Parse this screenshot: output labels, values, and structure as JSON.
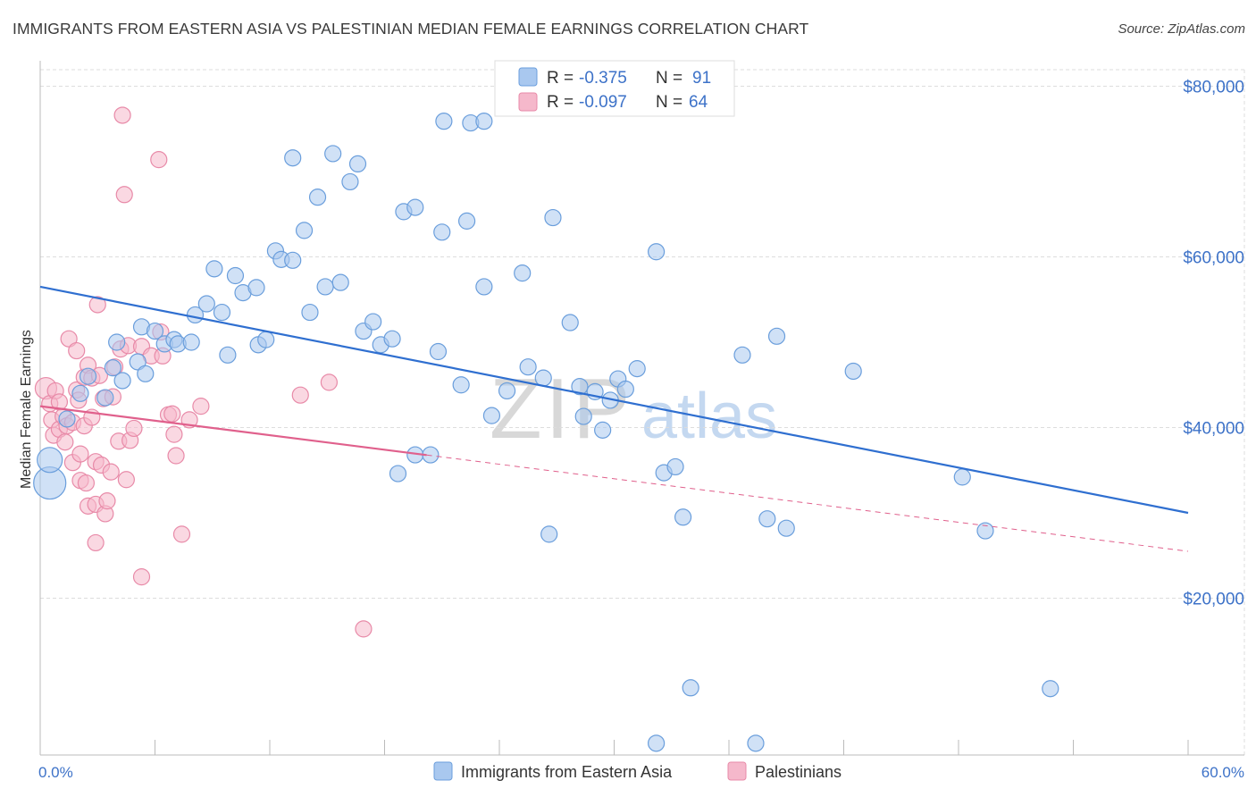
{
  "title": "IMMIGRANTS FROM EASTERN ASIA VS PALESTINIAN MEDIAN FEMALE EARNINGS CORRELATION CHART",
  "source": "Source: ZipAtlas.com",
  "watermark": {
    "zip": "ZIP",
    "atlas": "atlas"
  },
  "legend_stats": [
    {
      "r_label": "R =",
      "r_value": "-0.375",
      "n_label": "N =",
      "n_value": "91"
    },
    {
      "r_label": "R =",
      "r_value": "-0.097",
      "n_label": "N =",
      "n_value": "64"
    }
  ],
  "colors": {
    "blue_fill": "#a9c8ef",
    "blue_stroke": "#6a9edc",
    "blue_line": "#2f6fd0",
    "pink_fill": "#f5b8cb",
    "pink_stroke": "#e88aa8",
    "pink_line": "#e0608c",
    "axis_text": "#3d72c8",
    "grid": "#dddddd"
  },
  "chart_data": {
    "type": "scatter",
    "title": "IMMIGRANTS FROM EASTERN ASIA VS PALESTINIAN MEDIAN FEMALE EARNINGS CORRELATION CHART",
    "xlabel": "",
    "ylabel": "Median Female Earnings",
    "xlim": [
      0,
      60
    ],
    "ylim": [
      0,
      82000
    ],
    "x_tick_labels": [
      "0.0%",
      "60.0%"
    ],
    "y_ticks": [
      20000,
      40000,
      60000,
      80000
    ],
    "y_tick_labels": [
      "$20,000",
      "$40,000",
      "$60,000",
      "$80,000"
    ],
    "grid": true,
    "legend_position": "bottom",
    "series": [
      {
        "name": "Immigrants from Eastern Asia",
        "color": "#a9c8ef",
        "trend": {
          "x": [
            0,
            60
          ],
          "y": [
            56500,
            30000
          ],
          "dashed_from": null
        },
        "points": [
          [
            0.5,
            33500,
            18
          ],
          [
            0.5,
            36200,
            14
          ],
          [
            1.4,
            41000,
            9
          ],
          [
            2.1,
            44000,
            9
          ],
          [
            2.5,
            46000,
            9
          ],
          [
            3.4,
            43500,
            9
          ],
          [
            3.8,
            47000,
            9
          ],
          [
            4.0,
            50000,
            9
          ],
          [
            4.3,
            45500,
            9
          ],
          [
            5.1,
            47700,
            9
          ],
          [
            5.3,
            51800,
            9
          ],
          [
            5.5,
            46300,
            9
          ],
          [
            6.0,
            51300,
            9
          ],
          [
            6.5,
            49800,
            9
          ],
          [
            7.0,
            50300,
            9
          ],
          [
            7.2,
            49800,
            9
          ],
          [
            7.9,
            50000,
            9
          ],
          [
            8.1,
            53200,
            9
          ],
          [
            8.7,
            54500,
            9
          ],
          [
            9.1,
            58600,
            9
          ],
          [
            9.5,
            53500,
            9
          ],
          [
            9.8,
            48500,
            9
          ],
          [
            10.2,
            57800,
            9
          ],
          [
            10.6,
            55800,
            9
          ],
          [
            11.3,
            56400,
            9
          ],
          [
            11.4,
            49700,
            9
          ],
          [
            11.8,
            50300,
            9
          ],
          [
            12.3,
            60700,
            9
          ],
          [
            12.6,
            59700,
            9
          ],
          [
            13.2,
            59600,
            9
          ],
          [
            13.2,
            71600,
            9
          ],
          [
            13.8,
            63100,
            9
          ],
          [
            14.1,
            53500,
            9
          ],
          [
            14.5,
            67000,
            9
          ],
          [
            14.9,
            56500,
            9
          ],
          [
            15.3,
            72100,
            9
          ],
          [
            15.7,
            57000,
            9
          ],
          [
            16.2,
            68800,
            9
          ],
          [
            16.6,
            70900,
            9
          ],
          [
            16.9,
            51300,
            9
          ],
          [
            17.4,
            52400,
            9
          ],
          [
            17.8,
            49700,
            9
          ],
          [
            18.4,
            50400,
            9
          ],
          [
            18.7,
            34600,
            9
          ],
          [
            19.0,
            65300,
            9
          ],
          [
            19.6,
            65800,
            9
          ],
          [
            19.6,
            36800,
            9
          ],
          [
            20.4,
            36800,
            9
          ],
          [
            20.8,
            48900,
            9
          ],
          [
            21.0,
            62900,
            9
          ],
          [
            21.1,
            75900,
            9
          ],
          [
            22.0,
            45000,
            9
          ],
          [
            22.3,
            64200,
            9
          ],
          [
            22.5,
            75700,
            9
          ],
          [
            23.2,
            75900,
            9
          ],
          [
            23.2,
            56500,
            9
          ],
          [
            23.6,
            41400,
            9
          ],
          [
            24.4,
            44300,
            9
          ],
          [
            25.2,
            58100,
            9
          ],
          [
            25.5,
            47100,
            9
          ],
          [
            26.3,
            45800,
            9
          ],
          [
            26.6,
            27500,
            9
          ],
          [
            26.8,
            64600,
            9
          ],
          [
            27.7,
            52300,
            9
          ],
          [
            28.2,
            44800,
            9
          ],
          [
            28.4,
            41300,
            9
          ],
          [
            29.0,
            44200,
            9
          ],
          [
            29.4,
            39700,
            9
          ],
          [
            29.8,
            43200,
            9
          ],
          [
            30.2,
            45700,
            9
          ],
          [
            30.6,
            44500,
            9
          ],
          [
            31.2,
            46900,
            9
          ],
          [
            32.2,
            3000,
            9
          ],
          [
            32.2,
            60600,
            9
          ],
          [
            32.6,
            34700,
            9
          ],
          [
            33.2,
            35400,
            9
          ],
          [
            33.6,
            29500,
            9
          ],
          [
            34.0,
            9500,
            9
          ],
          [
            36.7,
            48500,
            9
          ],
          [
            37.4,
            3000,
            9
          ],
          [
            38.0,
            29300,
            9
          ],
          [
            38.5,
            50700,
            9
          ],
          [
            39.0,
            28200,
            9
          ],
          [
            42.5,
            46600,
            9
          ],
          [
            48.2,
            34200,
            9
          ],
          [
            49.4,
            27900,
            9
          ],
          [
            52.8,
            9400,
            9
          ]
        ]
      },
      {
        "name": "Palestinians",
        "color": "#f5b8cb",
        "trend": {
          "x": [
            0,
            60
          ],
          "y": [
            42500,
            25500
          ],
          "dashed_from": 20.2
        },
        "points": [
          [
            0.3,
            44600,
            12
          ],
          [
            0.5,
            42800,
            9
          ],
          [
            0.6,
            40900,
            9
          ],
          [
            0.7,
            39100,
            9
          ],
          [
            0.8,
            44300,
            9
          ],
          [
            1.0,
            43000,
            9
          ],
          [
            1.0,
            39800,
            9
          ],
          [
            1.2,
            41300,
            9
          ],
          [
            1.3,
            38300,
            9
          ],
          [
            1.4,
            40200,
            9
          ],
          [
            1.5,
            50400,
            9
          ],
          [
            1.7,
            35900,
            9
          ],
          [
            1.7,
            40600,
            9
          ],
          [
            1.9,
            44400,
            9
          ],
          [
            1.9,
            49000,
            9
          ],
          [
            2.0,
            43200,
            9
          ],
          [
            2.1,
            36900,
            9
          ],
          [
            2.1,
            33800,
            9
          ],
          [
            2.3,
            45900,
            9
          ],
          [
            2.3,
            40200,
            9
          ],
          [
            2.4,
            33500,
            9
          ],
          [
            2.5,
            30800,
            9
          ],
          [
            2.5,
            47300,
            9
          ],
          [
            2.7,
            41200,
            9
          ],
          [
            2.7,
            45800,
            9
          ],
          [
            2.9,
            36000,
            9
          ],
          [
            2.9,
            31000,
            9
          ],
          [
            2.9,
            26500,
            9
          ],
          [
            3.0,
            54400,
            9
          ],
          [
            3.1,
            46100,
            9
          ],
          [
            3.2,
            35600,
            9
          ],
          [
            3.3,
            43400,
            9
          ],
          [
            3.4,
            29900,
            9
          ],
          [
            3.5,
            31400,
            9
          ],
          [
            3.7,
            34800,
            9
          ],
          [
            3.8,
            43600,
            9
          ],
          [
            3.9,
            47100,
            9
          ],
          [
            4.1,
            38400,
            9
          ],
          [
            4.2,
            49200,
            9
          ],
          [
            4.3,
            76600,
            9
          ],
          [
            4.4,
            67300,
            9
          ],
          [
            4.5,
            33900,
            9
          ],
          [
            4.6,
            49600,
            9
          ],
          [
            4.7,
            38500,
            9
          ],
          [
            4.9,
            39900,
            9
          ],
          [
            5.3,
            22500,
            9
          ],
          [
            5.3,
            49500,
            9
          ],
          [
            5.8,
            48400,
            9
          ],
          [
            6.2,
            71400,
            9
          ],
          [
            6.3,
            51200,
            9
          ],
          [
            6.4,
            48400,
            9
          ],
          [
            6.7,
            41500,
            9
          ],
          [
            6.9,
            41600,
            9
          ],
          [
            7.0,
            39200,
            9
          ],
          [
            7.1,
            36700,
            9
          ],
          [
            7.4,
            27500,
            9
          ],
          [
            7.8,
            40900,
            9
          ],
          [
            8.4,
            42500,
            9
          ],
          [
            13.6,
            43800,
            9
          ],
          [
            15.1,
            45300,
            9
          ],
          [
            16.9,
            16400,
            9
          ]
        ]
      }
    ]
  },
  "legend_bottom": [
    "Immigrants from Eastern Asia",
    "Palestinians"
  ]
}
